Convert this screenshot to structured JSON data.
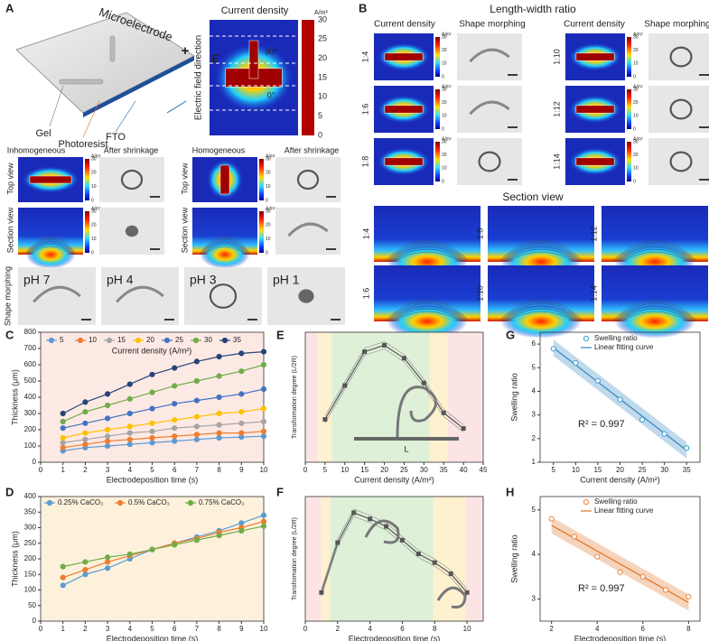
{
  "panel_labels": {
    "a": "A",
    "b": "B",
    "c": "C",
    "d": "D",
    "e": "E",
    "f": "F",
    "g": "G",
    "h": "H"
  },
  "panel_a": {
    "device": {
      "title": "Microelectrode",
      "gel": "Gel",
      "photoresist": "Photoresist",
      "fto": "FTO",
      "plus": "+"
    },
    "current_density": {
      "title": "Current density",
      "unit": "A/m²",
      "axis_label": "Electric field direction",
      "field_symbol": "E",
      "angle_vertical": "90°",
      "angle_horizontal": "0°",
      "colorbar_ticks": [
        0,
        5,
        10,
        15,
        20,
        25,
        30
      ]
    },
    "columns": [
      "Inhomogeneous",
      "After shrinkage",
      "Homogeneous",
      "After shrinkage"
    ],
    "rows": [
      "Top view",
      "Section view"
    ],
    "small_colorbar_unit": "A/m²",
    "small_colorbar_ticks": [
      0,
      10,
      20,
      30
    ],
    "morphing": {
      "label": "Shape morphing",
      "ph": [
        "pH 7",
        "pH 4",
        "pH 3",
        "pH 1"
      ]
    }
  },
  "panel_b": {
    "title": "Length-width ratio",
    "columns": [
      "Current density",
      "Shape morphing",
      "Current density",
      "Shape morphing"
    ],
    "ratios": [
      "1:4",
      "1:6",
      "1:8",
      "1:10",
      "1:12",
      "1:14"
    ],
    "section_title": "Section view",
    "colorbar_unit": "A/m²",
    "colorbar_ticks": [
      0,
      10,
      20,
      30
    ]
  },
  "chart_data": [
    {
      "type": "line",
      "marker": "circle",
      "x_label": "Electrodeposition time (s)",
      "y_label": "Thickness (μm)",
      "legend_title": "Current density (A/m²)",
      "x": [
        1,
        2,
        3,
        4,
        5,
        6,
        7,
        8,
        9,
        10
      ],
      "xlim": [
        0,
        10
      ],
      "xticks": [
        0,
        1,
        2,
        3,
        4,
        5,
        6,
        7,
        8,
        9,
        10
      ],
      "ylim": [
        0,
        800
      ],
      "yticks": [
        0,
        100,
        200,
        300,
        400,
        500,
        600,
        700,
        800
      ],
      "series": [
        {
          "name": "5",
          "color": "#5b9bd5",
          "values": [
            70,
            90,
            100,
            110,
            120,
            130,
            140,
            150,
            155,
            160
          ]
        },
        {
          "name": "10",
          "color": "#ed7d31",
          "values": [
            90,
            110,
            130,
            140,
            150,
            160,
            170,
            180,
            180,
            190
          ]
        },
        {
          "name": "15",
          "color": "#a5a5a5",
          "values": [
            120,
            140,
            160,
            180,
            190,
            210,
            220,
            230,
            240,
            250
          ]
        },
        {
          "name": "20",
          "color": "#ffc000",
          "values": [
            150,
            180,
            200,
            220,
            240,
            260,
            280,
            300,
            310,
            330
          ]
        },
        {
          "name": "25",
          "color": "#4472c4",
          "values": [
            210,
            240,
            270,
            300,
            330,
            360,
            380,
            400,
            420,
            450
          ]
        },
        {
          "name": "30",
          "color": "#70ad47",
          "values": [
            250,
            310,
            350,
            390,
            430,
            470,
            500,
            530,
            560,
            600
          ]
        },
        {
          "name": "35",
          "color": "#264478",
          "values": [
            300,
            370,
            420,
            480,
            540,
            580,
            620,
            650,
            670,
            680
          ]
        }
      ]
    },
    {
      "type": "line",
      "marker": "circle",
      "x_label": "Electrodeposition time (s)",
      "y_label": "Thickness  (μm)",
      "x": [
        1,
        2,
        3,
        4,
        5,
        6,
        7,
        8,
        9,
        10
      ],
      "xlim": [
        0,
        10
      ],
      "xticks": [
        0,
        1,
        2,
        3,
        4,
        5,
        6,
        7,
        8,
        9,
        10
      ],
      "ylim": [
        0,
        400
      ],
      "yticks": [
        0,
        50,
        100,
        150,
        200,
        250,
        300,
        350,
        400
      ],
      "series": [
        {
          "name": "0.25% CaCO₃",
          "color": "#5b9bd5",
          "values": [
            115,
            150,
            170,
            200,
            230,
            250,
            270,
            290,
            315,
            340
          ]
        },
        {
          "name": "0.5% CaCO₃",
          "color": "#ed7d31",
          "values": [
            140,
            165,
            190,
            210,
            230,
            250,
            265,
            285,
            300,
            320
          ]
        },
        {
          "name": "0.75% CaCO₃",
          "color": "#70ad47",
          "values": [
            175,
            190,
            205,
            215,
            230,
            245,
            260,
            275,
            290,
            305
          ]
        }
      ]
    },
    {
      "type": "line",
      "marker": "square",
      "x_label": "Current density (A/m²)",
      "y_label": "Transformation degree (L/2R)",
      "x": [
        5,
        10,
        15,
        20,
        25,
        30,
        35,
        40
      ],
      "xlim": [
        0,
        45
      ],
      "xticks": [
        0,
        5,
        10,
        15,
        20,
        25,
        30,
        35,
        40,
        45
      ],
      "ylim": [
        0,
        5
      ],
      "series": [
        {
          "color": "#555555",
          "values": [
            1.65,
            2.95,
            4.25,
            4.5,
            4.0,
            3.05,
            1.9,
            1.3
          ]
        }
      ],
      "annotation": "L"
    },
    {
      "type": "line",
      "marker": "square",
      "x_label": "Electrodeposition time (s)",
      "y_label": "Transformation degree (L/2R)",
      "x": [
        1,
        2,
        3,
        4,
        5,
        6,
        7,
        8,
        9,
        10
      ],
      "xlim": [
        0,
        11
      ],
      "xticks": [
        0,
        2,
        4,
        6,
        8,
        10
      ],
      "ylim": [
        0,
        5
      ],
      "series": [
        {
          "color": "#555555",
          "values": [
            1.15,
            3.15,
            4.35,
            4.1,
            3.8,
            3.25,
            2.7,
            2.35,
            1.9,
            1.15
          ]
        }
      ]
    },
    {
      "type": "scatter",
      "x_label": "Current density (A/m²)",
      "y_label": "Swelling ratio",
      "x": [
        5,
        10,
        15,
        20,
        25,
        30,
        35
      ],
      "xlim": [
        2,
        38
      ],
      "xticks": [
        5,
        10,
        15,
        20,
        25,
        30,
        35
      ],
      "ylim": [
        1,
        6.5
      ],
      "yticks": [
        1,
        2,
        3,
        4,
        5,
        6
      ],
      "series": [
        {
          "name": "Swelling ratio",
          "color": "#3a9fd0",
          "values": [
            5.8,
            5.2,
            4.45,
            3.65,
            2.8,
            2.2,
            1.6
          ]
        }
      ],
      "fit_label": "Linear fitting curve",
      "fit_color": "#2e86c1",
      "annotation": "R² = 0.997"
    },
    {
      "type": "scatter",
      "x_label": "Electrodeposition time (s)",
      "y_label": "Swelling ratio",
      "x": [
        2,
        3,
        4,
        5,
        6,
        7,
        8
      ],
      "xlim": [
        1.5,
        8.5
      ],
      "xticks": [
        2,
        4,
        6,
        8
      ],
      "ylim": [
        2.5,
        5.3
      ],
      "yticks": [
        3,
        4,
        5
      ],
      "series": [
        {
          "name": "Swelling ratio",
          "color": "#e8833a",
          "values": [
            4.8,
            4.4,
            3.95,
            3.6,
            3.5,
            3.2,
            3.05
          ]
        }
      ],
      "fit_label": "Linear fitting curve",
      "fit_color": "#e07020",
      "annotation": "R² = 0.997"
    }
  ]
}
